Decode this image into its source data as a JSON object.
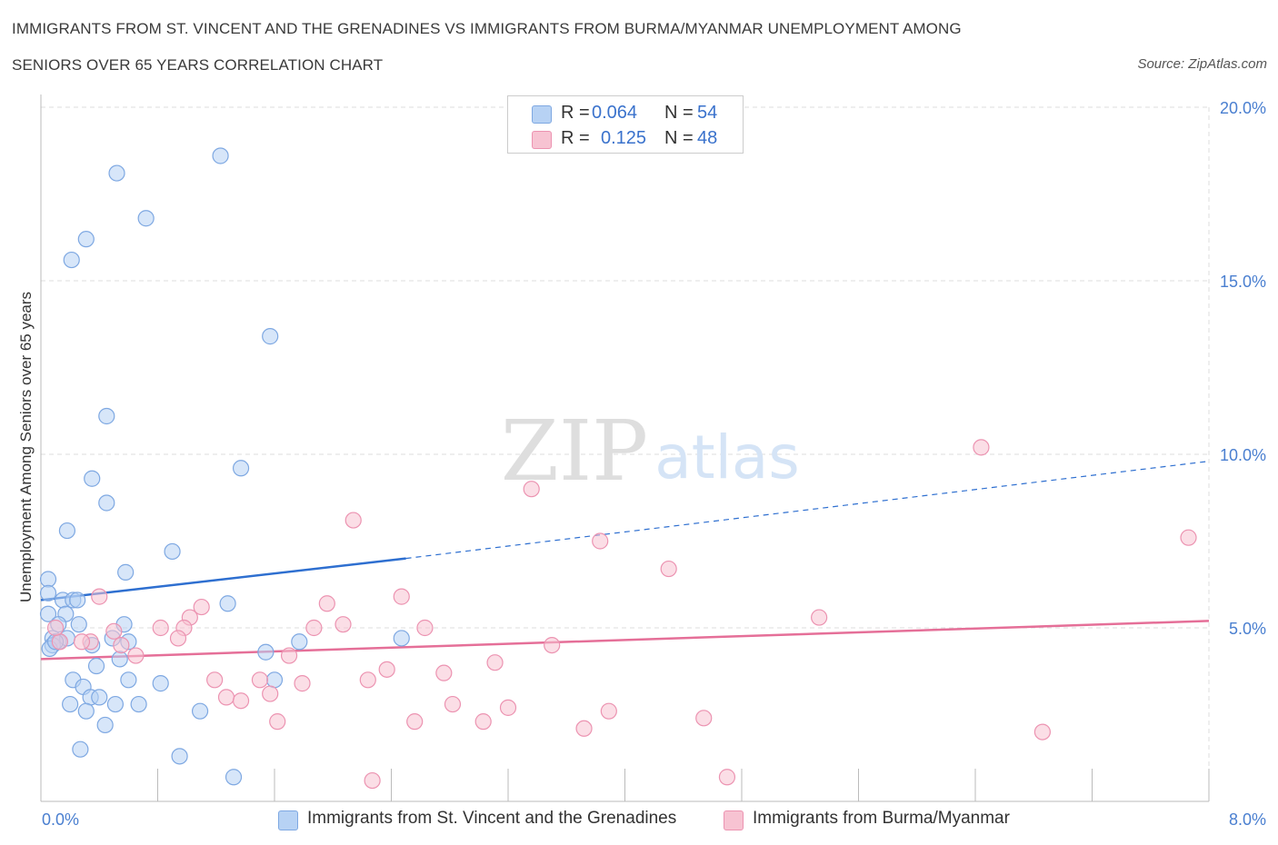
{
  "title_line1": "IMMIGRANTS FROM ST. VINCENT AND THE GRENADINES VS IMMIGRANTS FROM BURMA/MYANMAR UNEMPLOYMENT AMONG",
  "title_line2": "SENIORS OVER 65 YEARS CORRELATION CHART",
  "source": "Source: ZipAtlas.com",
  "watermark": {
    "zip": "ZIP",
    "atlas": "atlas"
  },
  "legend": {
    "r_label": "R =",
    "n_label": "N =",
    "rows": [
      {
        "r": "0.064",
        "n": "54"
      },
      {
        "r": "0.125",
        "n": "48"
      }
    ]
  },
  "colors": {
    "blue_fill": "#b7d2f4",
    "blue_stroke": "#7ea8e2",
    "blue_line": "#2e6fd0",
    "pink_fill": "#f7c3d2",
    "pink_stroke": "#ec93b1",
    "pink_line": "#e56f98",
    "tick": "#4a7fd0",
    "grid": "#dcdcdc"
  },
  "chart_data": {
    "type": "scatter",
    "title": "IMMIGRANTS FROM ST. VINCENT AND THE GRENADINES VS IMMIGRANTS FROM BURMA/MYANMAR UNEMPLOYMENT AMONG SENIORS OVER 65 YEARS CORRELATION CHART",
    "xlabel": "",
    "ylabel": "Unemployment Among Seniors over 65 years",
    "xlim": [
      0,
      8
    ],
    "ylim": [
      0,
      20
    ],
    "x_tick_labels": [
      "0.0%",
      "8.0%"
    ],
    "y_ticks": [
      5,
      10,
      15,
      20
    ],
    "y_tick_labels": [
      "5.0%",
      "10.0%",
      "15.0%",
      "20.0%"
    ],
    "grid": true,
    "legend_position": "top-center",
    "series": [
      {
        "name": "Immigrants from St. Vincent and the Grenadines",
        "color": "blue",
        "R": 0.064,
        "N": 54,
        "trend": {
          "x0": 0,
          "y0": 5.8,
          "x1": 2.5,
          "y1": 7.0,
          "dashed_to_x": 8,
          "dashed_to_y": 9.8
        },
        "points": [
          [
            0.52,
            18.1
          ],
          [
            1.23,
            18.6
          ],
          [
            0.72,
            16.8
          ],
          [
            0.31,
            16.2
          ],
          [
            0.21,
            15.6
          ],
          [
            1.57,
            13.4
          ],
          [
            0.45,
            11.1
          ],
          [
            1.37,
            9.6
          ],
          [
            0.35,
            9.3
          ],
          [
            0.45,
            8.6
          ],
          [
            0.18,
            7.8
          ],
          [
            0.9,
            7.2
          ],
          [
            0.58,
            6.6
          ],
          [
            0.05,
            6.4
          ],
          [
            0.05,
            6.0
          ],
          [
            0.15,
            5.8
          ],
          [
            0.22,
            5.8
          ],
          [
            0.25,
            5.8
          ],
          [
            1.28,
            5.7
          ],
          [
            0.05,
            5.4
          ],
          [
            0.17,
            5.4
          ],
          [
            0.57,
            5.1
          ],
          [
            0.26,
            5.1
          ],
          [
            0.12,
            5.1
          ],
          [
            0.08,
            4.7
          ],
          [
            0.12,
            4.6
          ],
          [
            0.49,
            4.7
          ],
          [
            0.18,
            4.7
          ],
          [
            1.77,
            4.6
          ],
          [
            2.47,
            4.7
          ],
          [
            0.35,
            4.5
          ],
          [
            0.08,
            4.5
          ],
          [
            0.06,
            4.4
          ],
          [
            0.6,
            4.6
          ],
          [
            1.54,
            4.3
          ],
          [
            0.54,
            4.1
          ],
          [
            0.38,
            3.9
          ],
          [
            0.22,
            3.5
          ],
          [
            0.6,
            3.5
          ],
          [
            0.82,
            3.4
          ],
          [
            1.6,
            3.5
          ],
          [
            0.29,
            3.3
          ],
          [
            0.34,
            3.0
          ],
          [
            0.4,
            3.0
          ],
          [
            0.51,
            2.8
          ],
          [
            0.67,
            2.8
          ],
          [
            0.2,
            2.8
          ],
          [
            0.31,
            2.6
          ],
          [
            1.09,
            2.6
          ],
          [
            0.44,
            2.2
          ],
          [
            0.27,
            1.5
          ],
          [
            0.95,
            1.3
          ],
          [
            1.32,
            0.7
          ],
          [
            0.1,
            4.6
          ]
        ]
      },
      {
        "name": "Immigrants from Burma/Myanmar",
        "color": "pink",
        "R": 0.125,
        "N": 48,
        "trend": {
          "x0": 0,
          "y0": 4.1,
          "x1": 8,
          "y1": 5.2
        },
        "points": [
          [
            6.44,
            10.2
          ],
          [
            3.36,
            9.0
          ],
          [
            2.14,
            8.1
          ],
          [
            3.83,
            7.5
          ],
          [
            7.86,
            7.6
          ],
          [
            4.3,
            6.7
          ],
          [
            0.4,
            5.9
          ],
          [
            2.47,
            5.9
          ],
          [
            1.96,
            5.7
          ],
          [
            1.1,
            5.6
          ],
          [
            5.33,
            5.3
          ],
          [
            1.02,
            5.3
          ],
          [
            0.82,
            5.0
          ],
          [
            0.98,
            5.0
          ],
          [
            1.87,
            5.0
          ],
          [
            2.07,
            5.1
          ],
          [
            2.63,
            5.0
          ],
          [
            0.5,
            4.9
          ],
          [
            0.94,
            4.7
          ],
          [
            0.34,
            4.6
          ],
          [
            0.55,
            4.5
          ],
          [
            0.13,
            4.6
          ],
          [
            0.1,
            5.0
          ],
          [
            3.5,
            4.5
          ],
          [
            0.65,
            4.2
          ],
          [
            1.7,
            4.2
          ],
          [
            3.11,
            4.0
          ],
          [
            2.37,
            3.8
          ],
          [
            2.76,
            3.7
          ],
          [
            1.19,
            3.5
          ],
          [
            2.24,
            3.5
          ],
          [
            1.5,
            3.5
          ],
          [
            1.79,
            3.4
          ],
          [
            1.27,
            3.0
          ],
          [
            1.57,
            3.1
          ],
          [
            1.37,
            2.9
          ],
          [
            2.82,
            2.8
          ],
          [
            3.2,
            2.7
          ],
          [
            3.89,
            2.6
          ],
          [
            4.54,
            2.4
          ],
          [
            2.56,
            2.3
          ],
          [
            3.03,
            2.3
          ],
          [
            1.62,
            2.3
          ],
          [
            3.72,
            2.1
          ],
          [
            6.86,
            2.0
          ],
          [
            2.27,
            0.6
          ],
          [
            4.7,
            0.7
          ],
          [
            0.28,
            4.6
          ]
        ]
      }
    ]
  },
  "bottom_legend": [
    {
      "label": "Immigrants from St. Vincent and the Grenadines"
    },
    {
      "label": "Immigrants from Burma/Myanmar"
    }
  ]
}
